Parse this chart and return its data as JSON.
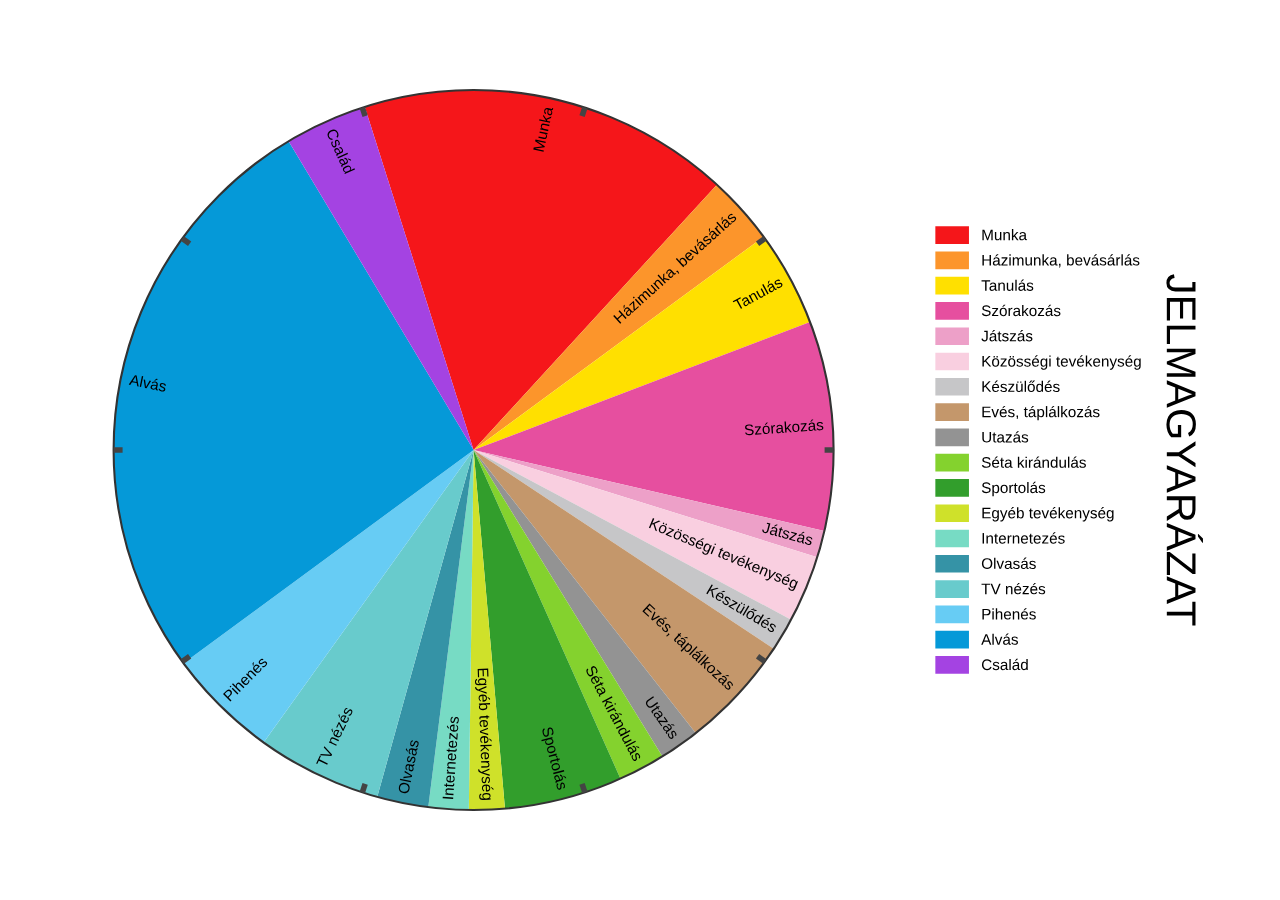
{
  "chart_data": {
    "type": "pie",
    "legend_title": "JELMAGYARÁZAT",
    "legend": "right",
    "categories": [
      "Munka",
      "Házimunka, bevásárlás",
      "Tanulás",
      "Szórakozás",
      "Játszás",
      "Közösségi tevékenység",
      "Készülődés",
      "Evés, táplálkozás",
      "Utazás",
      "Séta kirándulás",
      "Sportolás",
      "Egyéb tevékenység",
      "Internetezés",
      "Olvasás",
      "TV nézés",
      "Pihenés",
      "Alvás",
      "Család"
    ],
    "values": [
      16.7,
      3.1,
      4.3,
      9.4,
      1.2,
      3.0,
      1.5,
      5.1,
      1.8,
      2.1,
      5.3,
      1.6,
      1.8,
      2.3,
      5.6,
      5.0,
      26.5,
      3.7
    ],
    "colors": [
      "#f5161a",
      "#fc952b",
      "#ffe000",
      "#e64f9f",
      "#eda0c8",
      "#f9cfe0",
      "#c6c6c8",
      "#c4976b",
      "#939393",
      "#84d22e",
      "#329e2c",
      "#cfe12a",
      "#77dbc4",
      "#3593a6",
      "#68cbcc",
      "#67ccf4",
      "#0599d8",
      "#a443e2"
    ]
  }
}
